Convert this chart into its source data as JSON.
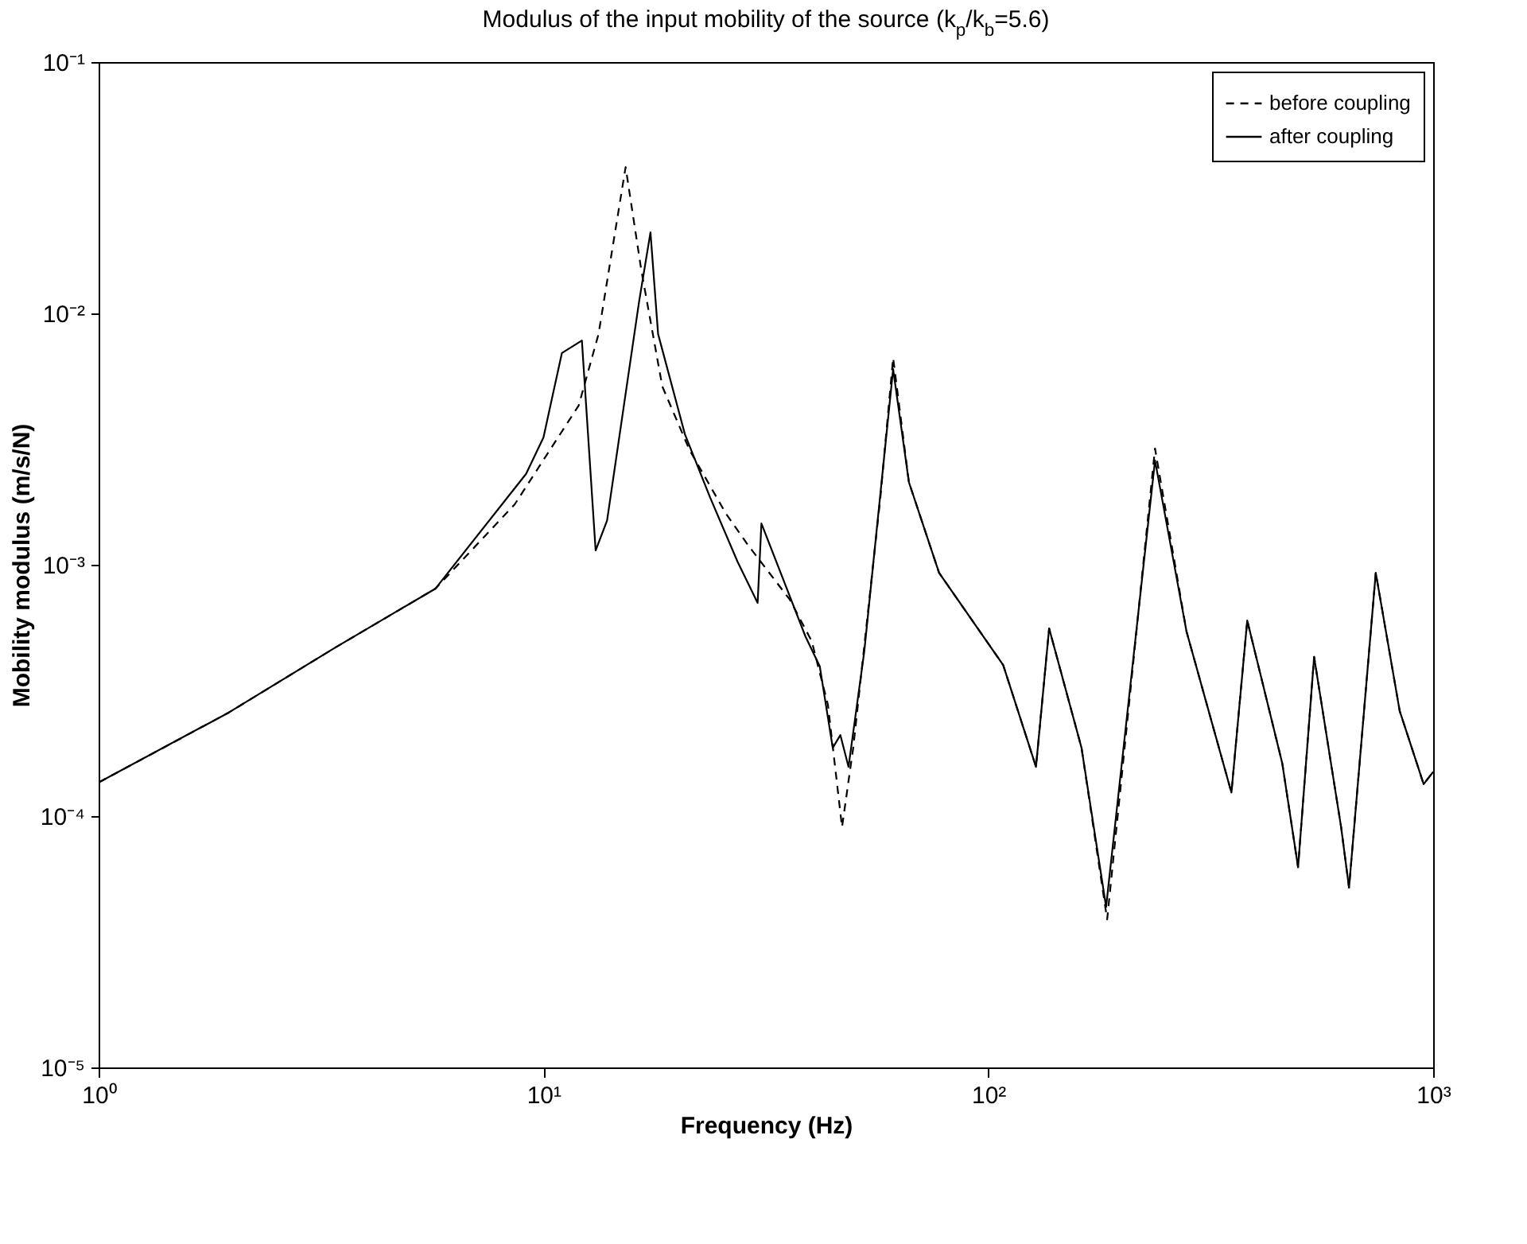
{
  "chart_data": {
    "type": "line",
    "subtitle": "Modulus of the input mobility of the source (k$_{p}$/k$_{b}$=5.6)",
    "xlabel": "Frequency (Hz)",
    "ylabel": "Mobility modulus (m/s/N)",
    "log": "xy",
    "grid": false,
    "legend": "top right",
    "xlim": [
      1,
      1000
    ],
    "ylim": [
      1e-05,
      0.1
    ],
    "xticks": [
      {
        "value": 1,
        "label": "10⁰"
      },
      {
        "value": 10,
        "label": "10¹"
      },
      {
        "value": 100,
        "label": "10²"
      },
      {
        "value": 1000,
        "label": "10³"
      }
    ],
    "yticks": [
      {
        "value": 1e-05,
        "label": "10⁻⁵"
      },
      {
        "value": 0.0001,
        "label": "10⁻⁴"
      },
      {
        "value": 0.001,
        "label": "10⁻³"
      },
      {
        "value": 0.01,
        "label": "10⁻²"
      },
      {
        "value": 0.1,
        "label": "10⁻¹"
      }
    ],
    "series": [
      {
        "name": "before coupling",
        "color": "#000000",
        "line_style": "dashed",
        "x": [
          1,
          1.96,
          3.41,
          5.72,
          8.62,
          12.0,
          13.3,
          15.3,
          16.6,
          18.5,
          21.3,
          25.7,
          28.9,
          35.8,
          40.1,
          43.6,
          46.9,
          49.7,
          57.2,
          61.1,
          66.3,
          77.5,
          108,
          128,
          137,
          162,
          185,
          237,
          279,
          352,
          382,
          458,
          497,
          540,
          621,
          647,
          743,
          841,
          952,
          1000
        ],
        "values": [
          0.000136,
          0.000258,
          0.000469,
          0.000804,
          0.00174,
          0.0043,
          0.00828,
          0.0382,
          0.0148,
          0.00512,
          0.00286,
          0.0016,
          0.00119,
          0.000726,
          0.000496,
          0.000277,
          9.04e-05,
          0.000187,
          0.00185,
          0.00665,
          0.00213,
          0.000929,
          0.000399,
          0.000157,
          0.000558,
          0.000187,
          3.88e-05,
          0.0029,
          0.000542,
          0.000124,
          0.0006,
          0.000162,
          6.26e-05,
          0.00043,
          9.04e-05,
          5.19e-05,
          0.000929,
          0.000262,
          0.000134,
          0.00015
        ]
      },
      {
        "name": "after coupling",
        "color": "#000000",
        "line_style": "solid",
        "x": [
          1,
          1.96,
          3.41,
          5.72,
          9.14,
          10,
          11.0,
          12.2,
          13.1,
          13.9,
          16.4,
          17.4,
          18.1,
          20.8,
          23.7,
          27.3,
          30.3,
          30.9,
          38.8,
          41.8,
          44.7,
          46.5,
          48.5,
          52.6,
          61.1,
          66.3,
          77.5,
          108,
          128,
          137,
          162,
          184,
          237,
          279,
          352,
          382,
          458,
          497,
          540,
          621,
          647,
          743,
          841,
          952,
          1000
        ],
        "values": [
          0.000136,
          0.000258,
          0.000469,
          0.000804,
          0.0023,
          0.00321,
          0.00695,
          0.0078,
          0.00114,
          0.0015,
          0.0111,
          0.021,
          0.00828,
          0.0033,
          0.00185,
          0.00103,
          0.000705,
          0.00146,
          0.000519,
          0.000394,
          0.000187,
          0.00021,
          0.000157,
          0.000449,
          0.006,
          0.00213,
          0.000929,
          0.000399,
          0.000157,
          0.000558,
          0.000187,
          4.35e-05,
          0.0026,
          0.000542,
          0.000124,
          0.0006,
          0.000162,
          6.26e-05,
          0.00043,
          9.04e-05,
          5.19e-05,
          0.000929,
          0.000262,
          0.000134,
          0.00015
        ]
      }
    ]
  }
}
